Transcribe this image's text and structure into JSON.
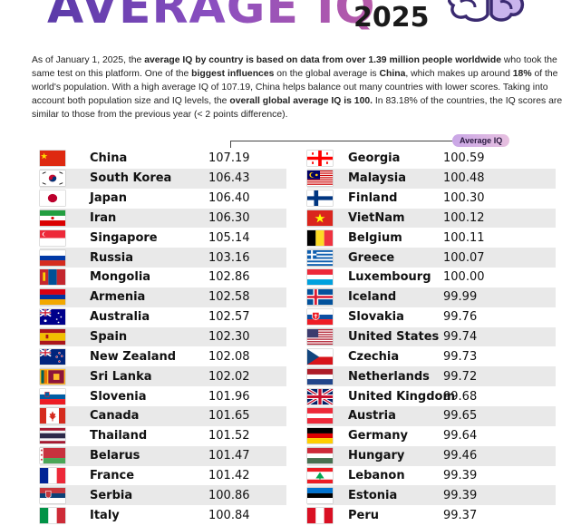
{
  "header": {
    "title": "AVERAGE IQ",
    "year": "2025"
  },
  "intro": {
    "p1": "As of January 1, 2025, the ",
    "b1": "average IQ by country is based on data from over 1.39 million people worldwide",
    "p2": " who took the same test on this platform. One of the ",
    "b2": "biggest influences",
    "p3": " on the global average is ",
    "b3": "China",
    "p4": ", which makes up around ",
    "b4": "18%",
    "p5": " of the world's population. With a high average IQ of 107.19, China helps balance out many countries with lower scores. Taking into account both population size and IQ levels, the ",
    "b5": "overall global average IQ is 100.",
    "p6": " In 83.18% of the countries, the IQ scores are similar to those from the previous year (< 2 points difference)."
  },
  "badge": "Average IQ",
  "left_column": [
    {
      "country": "China",
      "score": "107.19",
      "flag": "china"
    },
    {
      "country": "South Korea",
      "score": "106.43",
      "flag": "south-korea"
    },
    {
      "country": "Japan",
      "score": "106.40",
      "flag": "japan"
    },
    {
      "country": "Iran",
      "score": "106.30",
      "flag": "iran"
    },
    {
      "country": "Singapore",
      "score": "105.14",
      "flag": "singapore"
    },
    {
      "country": "Russia",
      "score": "103.16",
      "flag": "russia"
    },
    {
      "country": "Mongolia",
      "score": "102.86",
      "flag": "mongolia"
    },
    {
      "country": "Armenia",
      "score": "102.58",
      "flag": "armenia"
    },
    {
      "country": "Australia",
      "score": "102.57",
      "flag": "australia"
    },
    {
      "country": "Spain",
      "score": "102.30",
      "flag": "spain"
    },
    {
      "country": "New Zealand",
      "score": "102.08",
      "flag": "new-zealand"
    },
    {
      "country": "Sri Lanka",
      "score": "102.02",
      "flag": "sri-lanka"
    },
    {
      "country": "Slovenia",
      "score": "101.96",
      "flag": "slovenia"
    },
    {
      "country": "Canada",
      "score": "101.65",
      "flag": "canada"
    },
    {
      "country": "Thailand",
      "score": "101.52",
      "flag": "thailand"
    },
    {
      "country": "Belarus",
      "score": "101.47",
      "flag": "belarus"
    },
    {
      "country": "France",
      "score": "101.42",
      "flag": "france"
    },
    {
      "country": "Serbia",
      "score": "100.86",
      "flag": "serbia"
    },
    {
      "country": "Italy",
      "score": "100.84",
      "flag": "italy"
    }
  ],
  "right_column": [
    {
      "country": "Georgia",
      "score": "100.59",
      "flag": "georgia"
    },
    {
      "country": "Malaysia",
      "score": "100.48",
      "flag": "malaysia"
    },
    {
      "country": "Finland",
      "score": "100.30",
      "flag": "finland"
    },
    {
      "country": "VietNam",
      "score": "100.12",
      "flag": "vietnam"
    },
    {
      "country": "Belgium",
      "score": "100.11",
      "flag": "belgium"
    },
    {
      "country": "Greece",
      "score": "100.07",
      "flag": "greece"
    },
    {
      "country": "Luxembourg",
      "score": "100.00",
      "flag": "luxembourg"
    },
    {
      "country": "Iceland",
      "score": "99.99",
      "flag": "iceland"
    },
    {
      "country": "Slovakia",
      "score": "99.76",
      "flag": "slovakia"
    },
    {
      "country": "United States",
      "score": "99.74",
      "flag": "united-states"
    },
    {
      "country": "Czechia",
      "score": "99.73",
      "flag": "czechia"
    },
    {
      "country": "Netherlands",
      "score": "99.72",
      "flag": "netherlands"
    },
    {
      "country": "United Kingdom",
      "score": "99.68",
      "flag": "united-kingdom"
    },
    {
      "country": "Austria",
      "score": "99.65",
      "flag": "austria"
    },
    {
      "country": "Germany",
      "score": "99.64",
      "flag": "germany"
    },
    {
      "country": "Hungary",
      "score": "99.46",
      "flag": "hungary"
    },
    {
      "country": "Lebanon",
      "score": "99.39",
      "flag": "lebanon"
    },
    {
      "country": "Estonia",
      "score": "99.39",
      "flag": "estonia"
    },
    {
      "country": "Peru",
      "score": "99.37",
      "flag": "peru"
    }
  ]
}
